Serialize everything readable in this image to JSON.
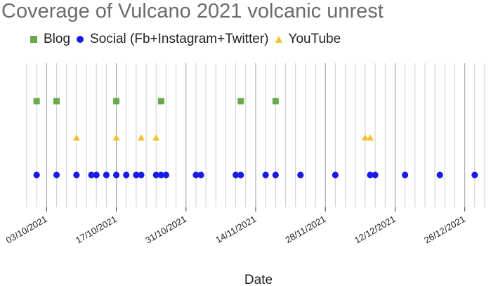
{
  "chart_data": {
    "type": "scatter",
    "title": "Coverage of Vulcano 2021 volcanic unrest",
    "xlabel": "Date",
    "ylabel": "",
    "x_axis": {
      "type": "date",
      "range": [
        "2021-09-29",
        "2021-12-30"
      ],
      "major_ticks": [
        "2021-10-03",
        "2021-10-17",
        "2021-10-31",
        "2021-11-14",
        "2021-11-28",
        "2021-12-12",
        "2021-12-26"
      ],
      "tick_labels": [
        "03/10/2021",
        "17/10/2021",
        "31/10/2021",
        "14/11/2021",
        "28/11/2021",
        "12/12/2021",
        "26/12/2021"
      ],
      "grid": "vertical lines every 2 days, darker every 14 days"
    },
    "legend_position": "top",
    "series": [
      {
        "name": "Blog",
        "marker": "square",
        "color": "#6aa84f",
        "dates": [
          "2021-10-01",
          "2021-10-05",
          "2021-10-17",
          "2021-10-26",
          "2021-11-11",
          "2021-11-18"
        ]
      },
      {
        "name": "Social (Fb+Instagram+Twitter)",
        "marker": "circle",
        "color": "#1a1ae6",
        "dates": [
          "2021-10-01",
          "2021-10-05",
          "2021-10-09",
          "2021-10-12",
          "2021-10-13",
          "2021-10-15",
          "2021-10-17",
          "2021-10-19",
          "2021-10-21",
          "2021-10-22",
          "2021-10-25",
          "2021-10-26",
          "2021-10-27",
          "2021-11-02",
          "2021-11-03",
          "2021-11-10",
          "2021-11-11",
          "2021-11-16",
          "2021-11-18",
          "2021-11-23",
          "2021-11-30",
          "2021-12-07",
          "2021-12-08",
          "2021-12-14",
          "2021-12-21",
          "2021-12-28"
        ]
      },
      {
        "name": "YouTube",
        "marker": "triangle",
        "color": "#f1c232",
        "dates": [
          "2021-10-09",
          "2021-10-17",
          "2021-10-22",
          "2021-10-25",
          "2021-12-06",
          "2021-12-07"
        ]
      }
    ]
  }
}
